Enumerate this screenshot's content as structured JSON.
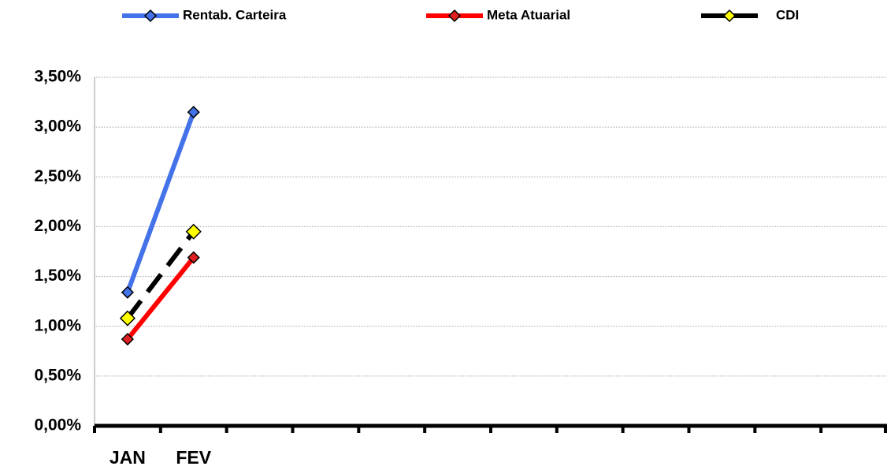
{
  "chart_data": {
    "type": "line",
    "categories": [
      "JAN",
      "FEV",
      null,
      null,
      null,
      null,
      null,
      null,
      null,
      null,
      null,
      null
    ],
    "series": [
      {
        "name": "Rentab. Carteira",
        "color": "#4472e8",
        "marker_color": "#4472e8",
        "values": [
          1.34,
          3.15,
          null,
          null,
          null,
          null,
          null,
          null,
          null,
          null,
          null,
          null
        ]
      },
      {
        "name": "Meta Atuarial",
        "color": "#ff0000",
        "marker_color": "#e02020",
        "values": [
          0.87,
          1.69,
          null,
          null,
          null,
          null,
          null,
          null,
          null,
          null,
          null,
          null
        ]
      },
      {
        "name": "CDI",
        "color": "#000000",
        "marker_color": "#ffff00",
        "dashed": true,
        "values": [
          1.08,
          1.95,
          null,
          null,
          null,
          null,
          null,
          null,
          null,
          null,
          null,
          null
        ]
      }
    ],
    "ylim": [
      0,
      3.5
    ],
    "yticks": [
      {
        "value": 0,
        "label": "0,00%"
      },
      {
        "value": 0.5,
        "label": "0,50%"
      },
      {
        "value": 1,
        "label": "1,00%"
      },
      {
        "value": 1.5,
        "label": "1,50%"
      },
      {
        "value": 2,
        "label": "2,00%"
      },
      {
        "value": 2.5,
        "label": "2,50%"
      },
      {
        "value": 3,
        "label": "3,00%"
      },
      {
        "value": 3.5,
        "label": "3,50%"
      }
    ],
    "grid": true,
    "legend": "top"
  }
}
